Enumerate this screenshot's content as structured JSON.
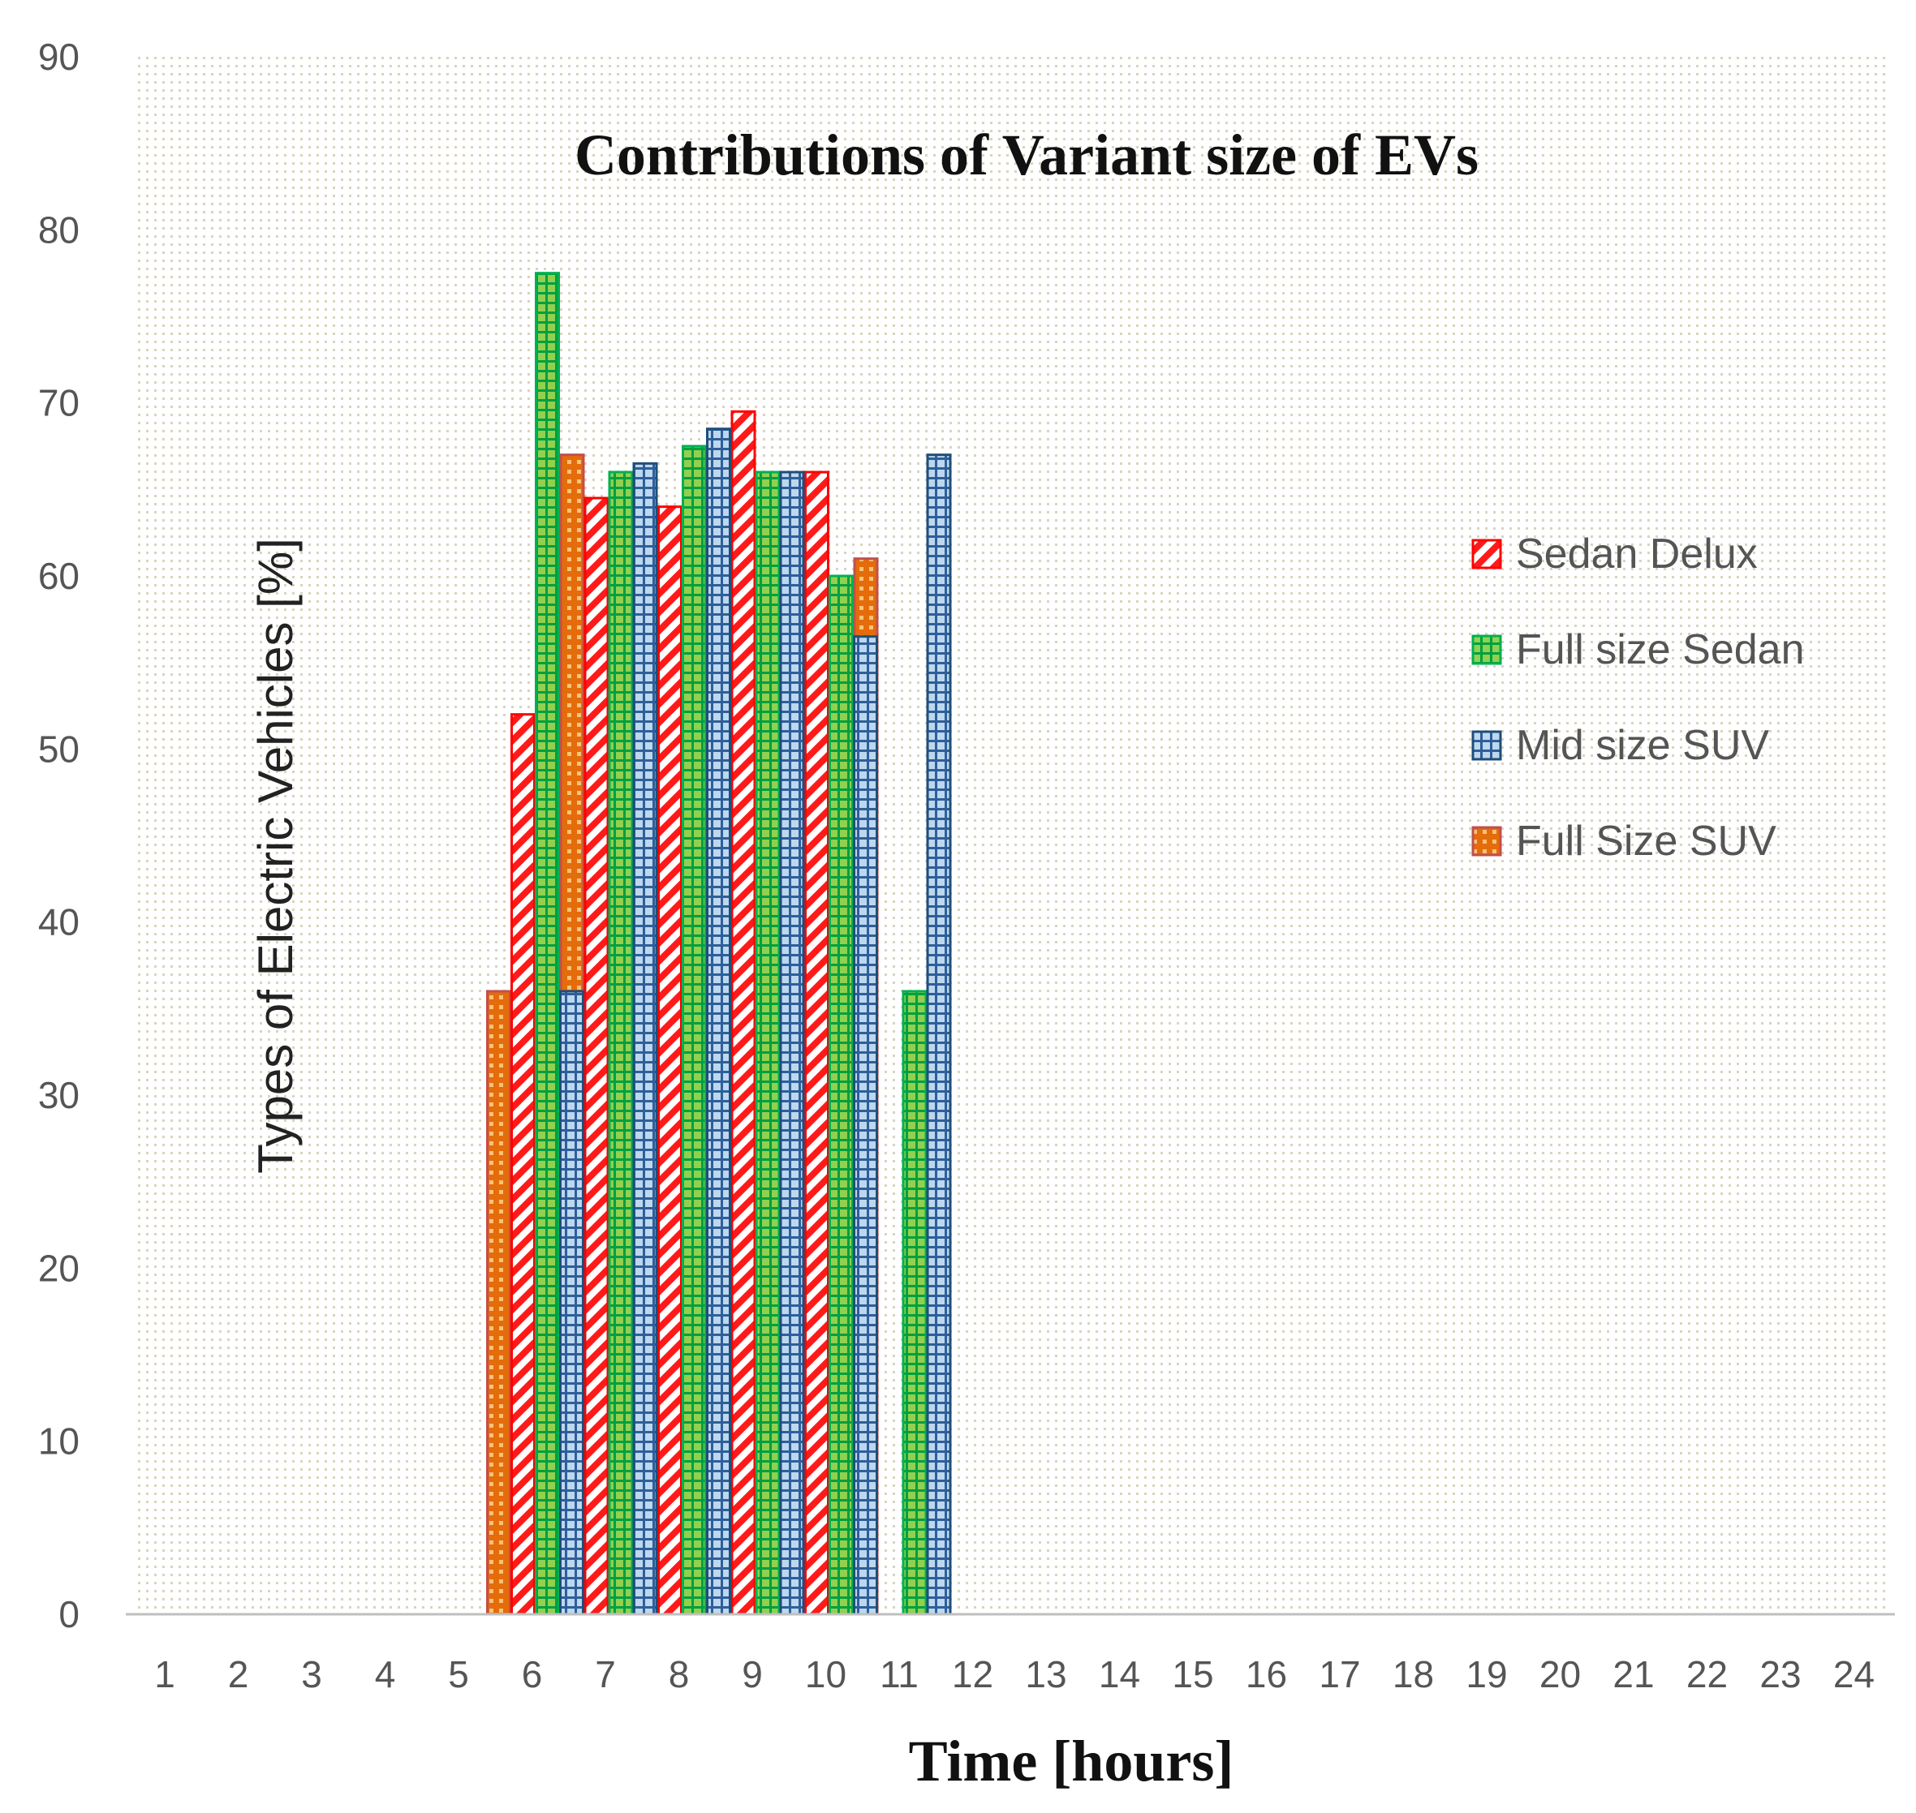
{
  "chart_data": {
    "type": "bar",
    "title": "Contributions of Variant size of EVs",
    "xlabel": "Time [hours]",
    "ylabel": "Types of Electric Vehicles [%]",
    "ylim": [
      0,
      90
    ],
    "yticks": [
      0,
      10,
      20,
      30,
      40,
      50,
      60,
      70,
      80,
      90
    ],
    "categories": [
      "1",
      "2",
      "3",
      "4",
      "5",
      "6",
      "7",
      "8",
      "9",
      "10",
      "11",
      "12",
      "13",
      "14",
      "15",
      "16",
      "17",
      "18",
      "19",
      "20",
      "21",
      "22",
      "23",
      "24"
    ],
    "legend_position": "right",
    "grid": true,
    "series": [
      {
        "name": "Full Size SUV",
        "color": "#c0504d",
        "fill": "#e46c0a",
        "pattern": "dots",
        "values": [
          0,
          0,
          0,
          0,
          0,
          36,
          67,
          59,
          65,
          61,
          61,
          0,
          0,
          0,
          0,
          0,
          0,
          0,
          0,
          0,
          0,
          0,
          0,
          0
        ]
      },
      {
        "name": "Sedan Delux",
        "color": "#ff0000",
        "fill": "#ffffff",
        "pattern": "diagonal",
        "values": [
          0,
          0,
          0,
          0,
          0,
          52,
          64.5,
          64,
          69.5,
          66,
          0,
          0,
          0,
          0,
          0,
          0,
          0,
          0,
          0,
          0,
          0,
          0,
          0,
          0
        ]
      },
      {
        "name": "Full size Sedan",
        "color": "#00b050",
        "fill": "#92d050",
        "pattern": "grid",
        "values": [
          0,
          0,
          0,
          0,
          0,
          77.5,
          66,
          67.5,
          66,
          60,
          36,
          0,
          0,
          0,
          0,
          0,
          0,
          0,
          0,
          0,
          0,
          0,
          0,
          0
        ]
      },
      {
        "name": "Mid size SUV",
        "color": "#1f4e79",
        "fill": "#9dc3e6",
        "pattern": "grid",
        "values": [
          0,
          0,
          0,
          0,
          0,
          36,
          66.5,
          68.5,
          66,
          56.5,
          67,
          0,
          0,
          0,
          0,
          0,
          0,
          0,
          0,
          0,
          0,
          0,
          0,
          0
        ]
      }
    ],
    "legend": [
      "Sedan Delux",
      "Full size Sedan",
      "Mid size SUV",
      "Full Size SUV"
    ]
  }
}
